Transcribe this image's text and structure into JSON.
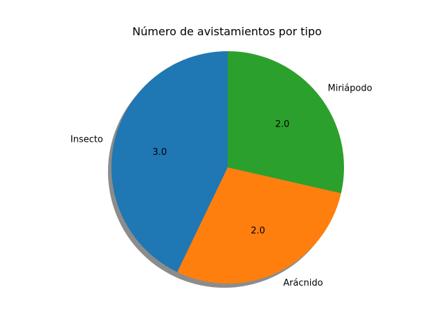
{
  "chart_data": {
    "type": "pie",
    "title": "Número de avistamientos por tipo",
    "categories": [
      "Insecto",
      "Arácnido",
      "Miriápodo"
    ],
    "values": [
      3.0,
      2.0,
      2.0
    ],
    "value_labels": [
      "3.0",
      "2.0",
      "2.0"
    ],
    "colors": [
      "#1f77b4",
      "#ff7f0e",
      "#2ca02c"
    ],
    "start_angle_deg": 90,
    "direction": "counterclockwise",
    "shadow": true,
    "legend": "none"
  }
}
